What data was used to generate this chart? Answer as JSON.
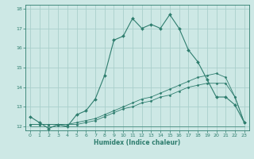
{
  "title": "",
  "xlabel": "Humidex (Indice chaleur)",
  "bg_color": "#cde8e5",
  "grid_color": "#aacfcb",
  "line_color": "#2e7d6e",
  "xlim": [
    -0.5,
    23.5
  ],
  "ylim": [
    11.8,
    18.2
  ],
  "yticks": [
    12,
    13,
    14,
    15,
    16,
    17,
    18
  ],
  "xticks": [
    0,
    1,
    2,
    3,
    4,
    5,
    6,
    7,
    8,
    9,
    10,
    11,
    12,
    13,
    14,
    15,
    16,
    17,
    18,
    19,
    20,
    21,
    22,
    23
  ],
  "series1_x": [
    0,
    1,
    2,
    3,
    4,
    5,
    6,
    7,
    8,
    9,
    10,
    11,
    12,
    13,
    14,
    15,
    16,
    17,
    18,
    19,
    20,
    21,
    22,
    23
  ],
  "series1_y": [
    12.5,
    12.2,
    11.9,
    12.1,
    12.0,
    12.6,
    12.8,
    13.4,
    14.6,
    16.4,
    16.6,
    17.5,
    17.0,
    17.2,
    17.0,
    17.7,
    17.0,
    15.9,
    15.3,
    14.4,
    13.5,
    13.5,
    13.1,
    12.2
  ],
  "series2_x": [
    0,
    1,
    2,
    3,
    4,
    5,
    6,
    7,
    8,
    9,
    10,
    11,
    12,
    13,
    14,
    15,
    16,
    17,
    18,
    19,
    20,
    21,
    22,
    23
  ],
  "series2_y": [
    12.1,
    12.1,
    12.1,
    12.1,
    12.1,
    12.2,
    12.3,
    12.4,
    12.6,
    12.8,
    13.0,
    13.2,
    13.4,
    13.5,
    13.7,
    13.9,
    14.1,
    14.3,
    14.5,
    14.6,
    14.7,
    14.5,
    13.5,
    12.2
  ],
  "series3_x": [
    0,
    1,
    2,
    3,
    4,
    5,
    6,
    7,
    8,
    9,
    10,
    11,
    12,
    13,
    14,
    15,
    16,
    17,
    18,
    19,
    20,
    21,
    22,
    23
  ],
  "series3_y": [
    12.1,
    12.1,
    12.1,
    12.1,
    12.1,
    12.1,
    12.2,
    12.3,
    12.5,
    12.7,
    12.9,
    13.0,
    13.2,
    13.3,
    13.5,
    13.6,
    13.8,
    14.0,
    14.1,
    14.2,
    14.2,
    14.2,
    13.5,
    12.2
  ],
  "series4_x": [
    0,
    1,
    2,
    3,
    4,
    5,
    6,
    7,
    8,
    9,
    10,
    11,
    12,
    13,
    14,
    15,
    16,
    17,
    18,
    19,
    20,
    21,
    22,
    23
  ],
  "series4_y": [
    12.0,
    12.0,
    12.0,
    12.0,
    12.0,
    12.0,
    12.0,
    12.0,
    12.0,
    12.0,
    12.0,
    12.0,
    12.0,
    12.0,
    12.0,
    12.0,
    12.0,
    12.0,
    12.0,
    12.0,
    12.0,
    12.0,
    12.0,
    12.0
  ]
}
